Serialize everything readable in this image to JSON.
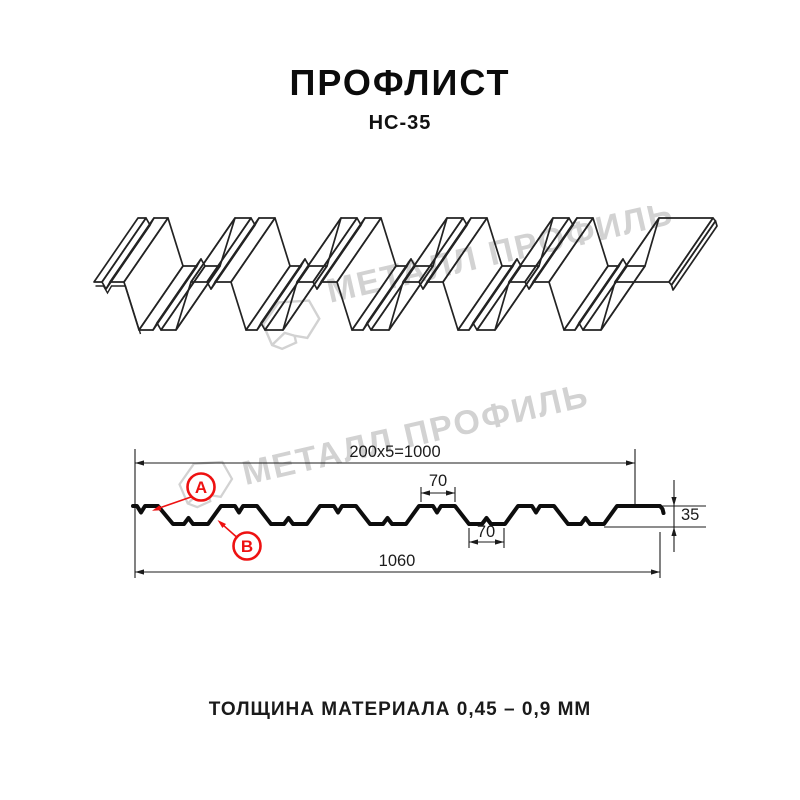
{
  "page": {
    "background": "#ffffff"
  },
  "header": {
    "title": "ПРОФЛИСТ",
    "subtitle": "НС-35"
  },
  "watermark": {
    "text": "МЕТАЛЛ ПРОФИЛЬ",
    "color": "#d2d2d2"
  },
  "diagram": {
    "type": "profile-sheet-cross-section",
    "profile_name": "НС-35",
    "dims": {
      "pitch": "200x5=1000",
      "overall_width": "1060",
      "flange_width": "70",
      "valley_width": "70",
      "height": "35"
    },
    "callouts": {
      "a": "A",
      "b": "B"
    },
    "colors": {
      "accent": "#ee1111",
      "line": "#1b1b1b",
      "profile": "#0d0d0d",
      "watermark": "#d2d2d2"
    }
  },
  "footer": {
    "note": "ТОЛЩИНА МАТЕРИАЛА 0,45 – 0,9 ММ"
  }
}
